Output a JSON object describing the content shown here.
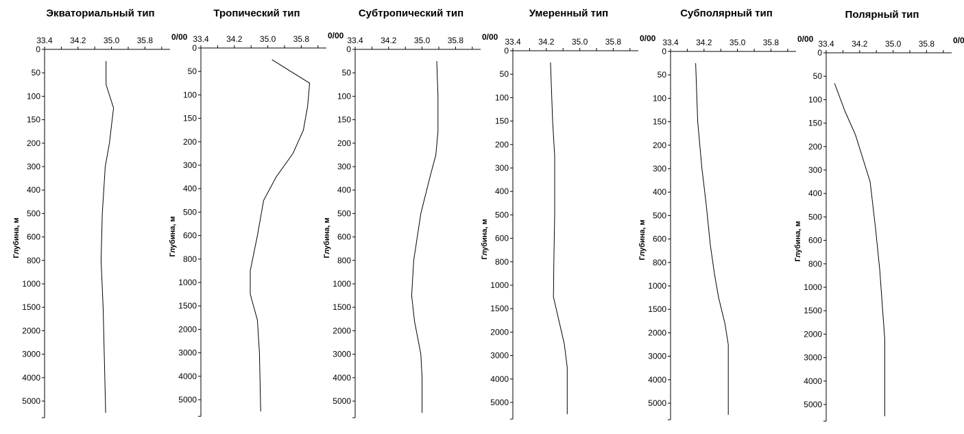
{
  "chart_data": [
    {
      "type": "line",
      "title": "Экваториальный тип",
      "ylabel": "Глубина, м",
      "xunit": "0/00",
      "xticks": [
        "33.4",
        "34.2",
        "35.0",
        "35.8"
      ],
      "xlim": [
        33.4,
        36.4
      ],
      "yticks": [
        "0",
        "50",
        "100",
        "150",
        "200",
        "300",
        "400",
        "500",
        "600",
        "800",
        "1000",
        "1500",
        "2000",
        "3000",
        "4000",
        "5000"
      ],
      "x": [
        34.87,
        34.87,
        35.05,
        34.95,
        34.85,
        34.78,
        34.75,
        34.8,
        34.86
      ],
      "y": [
        25,
        75,
        125,
        200,
        300,
        500,
        800,
        1500,
        5500
      ]
    },
    {
      "type": "line",
      "title": "Тропический тип",
      "ylabel": "Глубина, м",
      "xunit": "0/00",
      "xticks": [
        "33.4",
        "34.2",
        "35.0",
        "35.8"
      ],
      "xlim": [
        33.4,
        36.4
      ],
      "yticks": [
        "0",
        "50",
        "100",
        "150",
        "200",
        "300",
        "400",
        "500",
        "600",
        "800",
        "1000",
        "1500",
        "2000",
        "3000",
        "4000",
        "5000"
      ],
      "x": [
        35.1,
        36.0,
        35.95,
        35.85,
        35.6,
        35.2,
        34.9,
        34.75,
        34.58,
        34.58,
        34.75,
        34.8,
        34.83
      ],
      "y": [
        25,
        75,
        125,
        175,
        250,
        350,
        450,
        600,
        900,
        1250,
        1800,
        3000,
        5500
      ]
    },
    {
      "type": "line",
      "title": "Субтропический тип",
      "ylabel": "Глубина, м",
      "xunit": "0/00",
      "xticks": [
        "33.4",
        "34.2",
        "35.0",
        "35.8"
      ],
      "xlim": [
        33.4,
        36.4
      ],
      "yticks": [
        "0",
        "50",
        "100",
        "150",
        "200",
        "300",
        "400",
        "500",
        "600",
        "800",
        "1000",
        "1500",
        "2000",
        "3000",
        "4000",
        "5000"
      ],
      "x": [
        35.35,
        35.38,
        35.38,
        35.33,
        35.18,
        34.97,
        34.8,
        34.75,
        34.82,
        34.97,
        35.0,
        35.0
      ],
      "y": [
        25,
        100,
        175,
        250,
        350,
        500,
        800,
        1250,
        1800,
        3000,
        4000,
        5500
      ]
    },
    {
      "type": "line",
      "title": "Умеренный тип",
      "ylabel": "Глубина, м",
      "xunit": "0/00",
      "xticks": [
        "33.4",
        "34.2",
        "35.0",
        "35.8"
      ],
      "xlim": [
        33.4,
        36.4
      ],
      "yticks": [
        "0",
        "50",
        "100",
        "150",
        "200",
        "300",
        "400",
        "500",
        "600",
        "800",
        "1000",
        "1500",
        "2000",
        "3000",
        "4000",
        "5000"
      ],
      "x": [
        34.3,
        34.35,
        34.4,
        34.4,
        34.38,
        34.37,
        34.5,
        34.63,
        34.7,
        34.7
      ],
      "y": [
        25,
        150,
        250,
        500,
        800,
        1250,
        1750,
        2500,
        3500,
        5500
      ]
    },
    {
      "type": "line",
      "title": "Субполярный тип",
      "ylabel": "Глубина, м",
      "xunit": "0/00",
      "xticks": [
        "33.4",
        "34.2",
        "35.0",
        "35.8"
      ],
      "xlim": [
        33.4,
        36.4
      ],
      "yticks": [
        "0",
        "50",
        "100",
        "150",
        "200",
        "300",
        "400",
        "500",
        "600",
        "800",
        "1000",
        "1500",
        "2000",
        "3000",
        "4000",
        "5000"
      ],
      "x": [
        34.0,
        34.05,
        34.15,
        34.25,
        34.35,
        34.45,
        34.55,
        34.7,
        34.78,
        34.78
      ],
      "y": [
        25,
        150,
        300,
        450,
        650,
        900,
        1250,
        1800,
        2500,
        5500
      ]
    },
    {
      "type": "line",
      "title": "Полярный тип",
      "ylabel": "Глубина, м",
      "xunit": "0/00",
      "xticks": [
        "33.4",
        "34.2",
        "35.0",
        "35.8"
      ],
      "xlim": [
        33.4,
        36.4
      ],
      "yticks": [
        "0",
        "50",
        "100",
        "150",
        "200",
        "300",
        "400",
        "500",
        "600",
        "800",
        "1000",
        "1500",
        "2000",
        "3000",
        "4000",
        "5000"
      ],
      "x": [
        33.6,
        33.85,
        34.1,
        34.45,
        34.58,
        34.68,
        34.75,
        34.8,
        34.8
      ],
      "y": [
        65,
        125,
        175,
        350,
        550,
        850,
        1500,
        2200,
        5500
      ]
    }
  ]
}
